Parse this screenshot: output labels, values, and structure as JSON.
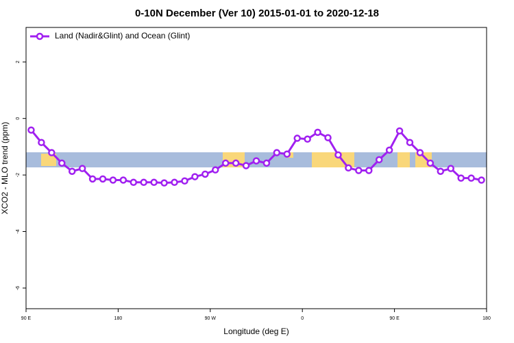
{
  "chart_data": {
    "type": "line",
    "title": "0-10N December (Ver 10)   2015-01-01 to 2020-12-18",
    "x_label": "Longitude (deg E)",
    "y_label": "XCO2 - MLO trend (ppm)",
    "xlim": [
      90,
      540
    ],
    "xticks": [
      {
        "value": 90,
        "label": "90 E"
      },
      {
        "value": 180,
        "label": "180"
      },
      {
        "value": 270,
        "label": "90 W"
      },
      {
        "value": 360,
        "label": "0"
      },
      {
        "value": 450,
        "label": "90 E"
      },
      {
        "value": 540,
        "label": "180"
      }
    ],
    "ylim": [
      -6.73,
      3.22
    ],
    "yticks": [
      2,
      0,
      -2,
      -4,
      -6
    ],
    "legend": "top-left",
    "x": [
      95,
      105,
      115,
      125,
      135,
      145,
      155,
      165,
      175,
      185,
      195,
      205,
      215,
      225,
      235,
      245,
      255,
      265,
      275,
      285,
      295,
      305,
      315,
      325,
      335,
      345,
      355,
      365,
      375,
      385,
      395,
      405,
      415,
      425,
      435,
      445,
      455,
      465,
      475,
      485,
      495,
      505,
      515,
      525,
      535
    ],
    "series": [
      {
        "name": "Land (Nadir&Glint) and Ocean (Glint)",
        "color": "#a020f0",
        "values": [
          -0.41,
          -0.85,
          -1.21,
          -1.58,
          -1.87,
          -1.77,
          -2.14,
          -2.14,
          -2.18,
          -2.18,
          -2.26,
          -2.26,
          -2.26,
          -2.28,
          -2.26,
          -2.21,
          -2.06,
          -1.97,
          -1.82,
          -1.58,
          -1.58,
          -1.67,
          -1.5,
          -1.58,
          -1.21,
          -1.26,
          -0.7,
          -0.73,
          -0.49,
          -0.68,
          -1.29,
          -1.75,
          -1.84,
          -1.84,
          -1.46,
          -1.12,
          -0.44,
          -0.85,
          -1.21,
          -1.58,
          -1.87,
          -1.77,
          -2.11,
          -2.11,
          -2.18
        ]
      }
    ]
  }
}
